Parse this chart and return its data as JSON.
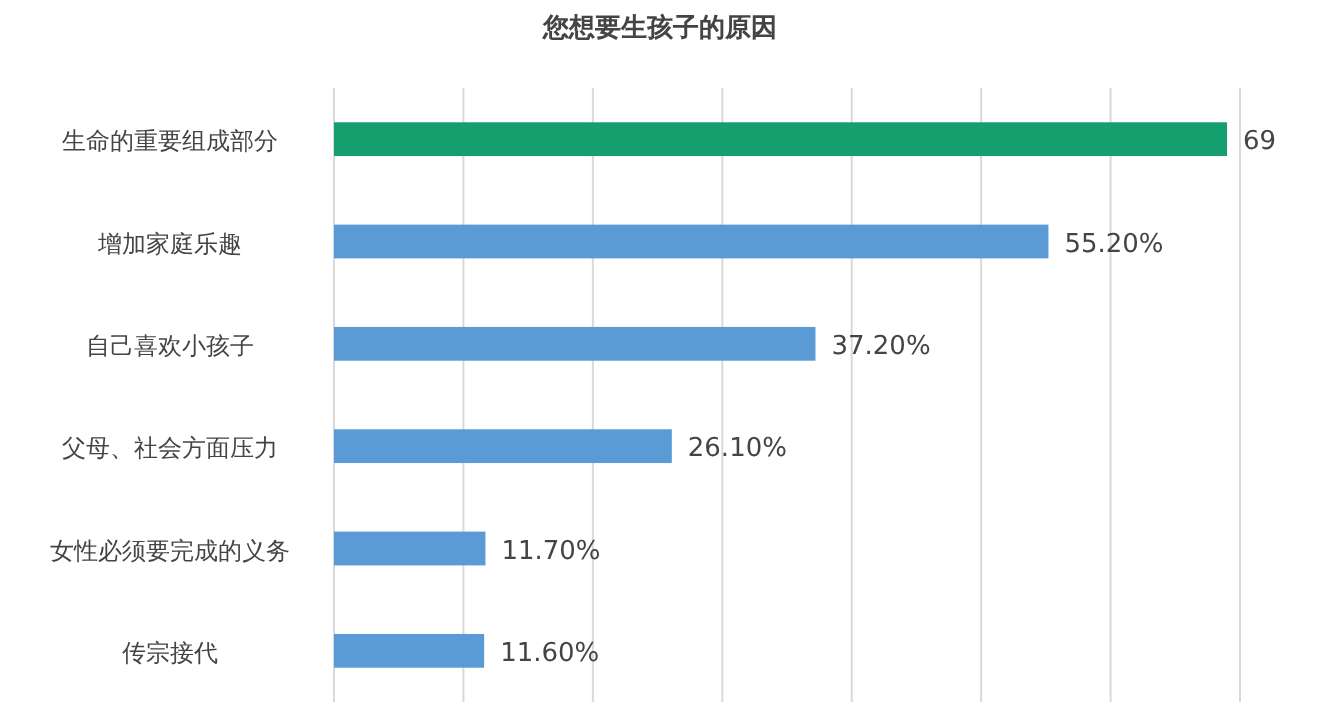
{
  "chart_data": {
    "type": "bar",
    "orientation": "horizontal",
    "title": "您想要生孩子的原因",
    "categories": [
      "生命的重要组成部分",
      "增加家庭乐趣",
      "自己喜欢小孩子",
      "父母、社会方面压力",
      "女性必须要完成的义务",
      "传宗接代"
    ],
    "values": [
      69,
      55.2,
      37.2,
      26.1,
      11.7,
      11.6
    ],
    "colors": [
      "#169f6e",
      "#5b9bd5",
      "#5b9bd5",
      "#5b9bd5",
      "#5b9bd5",
      "#5b9bd5"
    ],
    "value_labels": [
      "69",
      "55.20%",
      "37.20%",
      "26.10%",
      "11.70%",
      "11.60%"
    ],
    "xlim": [
      0,
      70
    ],
    "xticks": [
      {
        "value": 0,
        "label": null
      },
      {
        "value": 10,
        "label": null
      },
      {
        "value": 20,
        "label": null
      },
      {
        "value": 30,
        "label": null
      },
      {
        "value": 40,
        "label": null
      },
      {
        "value": 50,
        "label": null
      },
      {
        "value": 60,
        "label": null
      },
      {
        "value": 70,
        "label": null
      }
    ],
    "grid": "x",
    "tick_labels": "y"
  }
}
